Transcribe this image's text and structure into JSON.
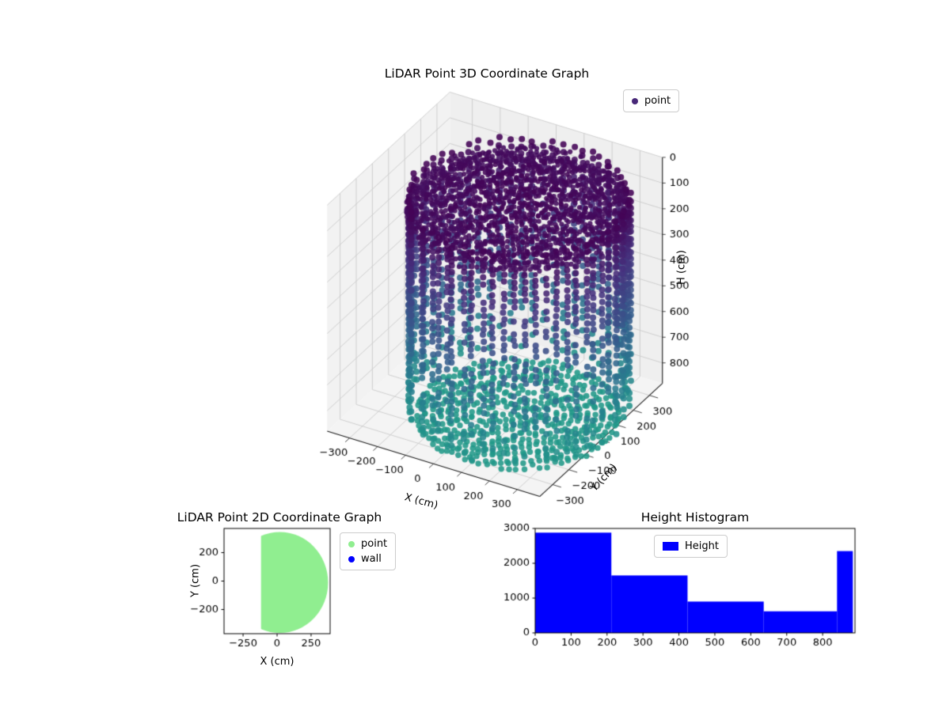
{
  "chart_data": [
    {
      "type": "scatter3d",
      "title": "LiDAR Point 3D Coordinate Graph",
      "xlabel": "X (cm)",
      "ylabel": "Y (cm)",
      "zlabel": "H (cm)",
      "legend": [
        {
          "label": "point",
          "color": "#482878"
        }
      ],
      "xlim": [
        -380,
        380
      ],
      "ylim": [
        -380,
        380
      ],
      "zlim": [
        0,
        880
      ],
      "z_inverted": true,
      "xticks": [
        -300,
        -200,
        -100,
        0,
        100,
        200,
        300
      ],
      "yticks": [
        -300,
        -200,
        -100,
        0,
        100,
        200,
        300
      ],
      "zticks": [
        0,
        100,
        200,
        300,
        400,
        500,
        600,
        700,
        800
      ],
      "colormap": "viridis",
      "color_value_range": [
        0,
        1600
      ],
      "grid": true,
      "pane_color": "#f2f2f2",
      "point_cloud": {
        "shape": "cylindrical-room-scan",
        "center_x": 100,
        "center_y": -30,
        "radius": 345,
        "ceiling_h_max": 90,
        "wall_columns": 64,
        "wall_h_step": 25,
        "wall_h_max": 835,
        "floor_h": 855
      }
    },
    {
      "type": "scatter",
      "title": "LiDAR Point 2D Coordinate Graph",
      "xlabel": "X (cm)",
      "ylabel": "Y (cm)",
      "legend": [
        {
          "label": "point",
          "color": "#90ee90"
        },
        {
          "label": "wall",
          "color": "#0000ff"
        }
      ],
      "xlim": [
        -390,
        390
      ],
      "ylim": [
        -370,
        370
      ],
      "xticks": [
        -250,
        0,
        250
      ],
      "yticks": [
        200,
        0,
        -200
      ],
      "region": {
        "fill": "#90ee90",
        "cx": 20,
        "cy": -10,
        "r": 355,
        "flat_left_x": -118
      }
    },
    {
      "type": "histogram",
      "title": "Height Histogram",
      "legend": [
        {
          "label": "Height",
          "color": "#0000ff"
        }
      ],
      "xlim": [
        0,
        890
      ],
      "ylim": [
        0,
        3000
      ],
      "xticks": [
        0,
        100,
        200,
        300,
        400,
        500,
        600,
        700,
        800
      ],
      "yticks": [
        0,
        1000,
        2000,
        3000
      ],
      "bin_edges": [
        0,
        212,
        424,
        636,
        840,
        884
      ],
      "counts": [
        2880,
        1650,
        900,
        620,
        2350
      ],
      "bar_color": "#0000ff"
    }
  ]
}
